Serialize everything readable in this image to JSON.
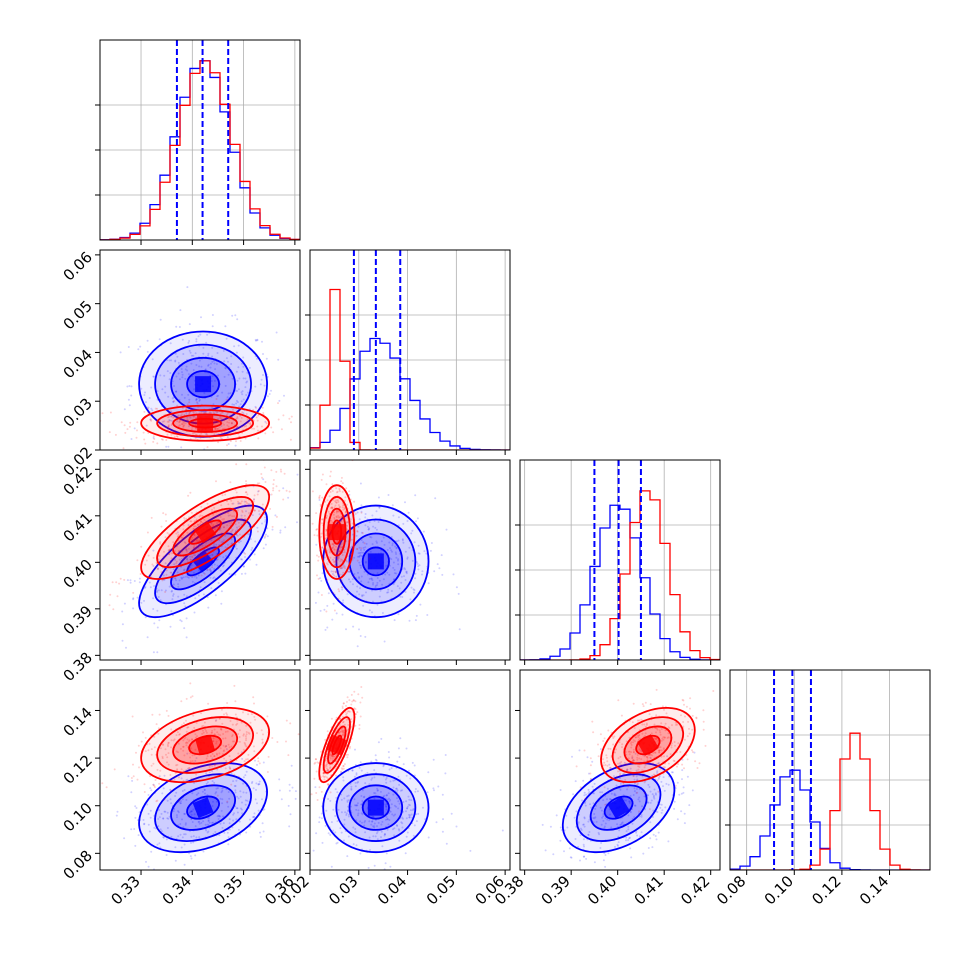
{
  "chart_data": {
    "type": "corner",
    "grid": true,
    "series": [
      {
        "color": "#0000ff",
        "means": [
          0.3421,
          0.0335,
          0.4002,
          0.0992
        ],
        "stds": [
          0.0052,
          0.0045,
          0.005,
          0.0078
        ],
        "corr": [
          [
            0,
            1,
            0.0
          ],
          [
            0,
            2,
            0.75
          ],
          [
            0,
            3,
            0.35
          ],
          [
            1,
            2,
            0.0
          ],
          [
            1,
            3,
            0.0
          ],
          [
            2,
            3,
            0.4
          ]
        ],
        "quantiles": [
          [
            0.337,
            0.342,
            0.347
          ],
          [
            0.029,
            0.0335,
            0.0385
          ],
          [
            0.395,
            0.4002,
            0.405
          ],
          [
            0.0915,
            0.0992,
            0.107
          ]
        ],
        "hist_peak_frac": [
          0.998,
          0.62,
          0.87,
          0.56
        ]
      },
      {
        "color": "#ff0000",
        "means": [
          0.3425,
          0.0255,
          0.4065,
          0.1255
        ],
        "stds": [
          0.0052,
          0.0015,
          0.0042,
          0.0065
        ],
        "corr": [
          [
            0,
            1,
            0.0
          ],
          [
            0,
            2,
            0.75
          ],
          [
            0,
            3,
            0.35
          ],
          [
            1,
            2,
            0.0
          ],
          [
            1,
            3,
            0.75
          ],
          [
            2,
            3,
            0.4
          ]
        ],
        "hist_peak_frac": [
          0.995,
          0.92,
          0.95,
          0.76
        ]
      }
    ],
    "quantile_color": "#0000ff",
    "ranges": [
      [
        0.322,
        0.361
      ],
      [
        0.02,
        0.061
      ],
      [
        0.379,
        0.422
      ],
      [
        0.073,
        0.157
      ]
    ],
    "ticks": [
      [
        "0.33",
        "0.34",
        "0.35",
        "0.36"
      ],
      [
        "0.02",
        "0.03",
        "0.04",
        "0.05",
        "0.06"
      ],
      [
        "0.38",
        "0.39",
        "0.40",
        "0.41",
        "0.42"
      ],
      [
        "0.08",
        "0.10",
        "0.12",
        "0.14"
      ]
    ],
    "tick_values": [
      [
        0.33,
        0.34,
        0.35,
        0.36
      ],
      [
        0.02,
        0.03,
        0.04,
        0.05,
        0.06
      ],
      [
        0.38,
        0.39,
        0.4,
        0.41,
        0.42
      ],
      [
        0.08,
        0.1,
        0.12,
        0.14
      ]
    ],
    "contour_levels_sigma": [
      0.5,
      1.0,
      1.5,
      2.0
    ]
  }
}
